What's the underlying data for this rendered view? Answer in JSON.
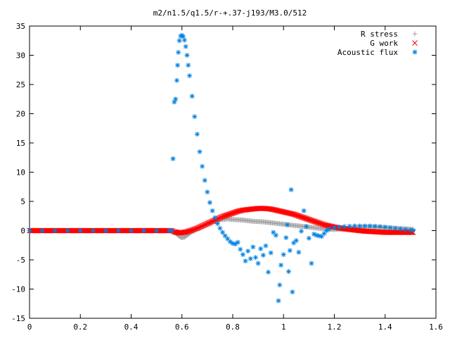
{
  "chart_data": {
    "type": "scatter",
    "title": "m2/n1.5/q1.5/r-+.37-j193/M3.0/512",
    "xlabel": "",
    "ylabel": "",
    "xlim": [
      0,
      1.6
    ],
    "ylim": [
      -15,
      35
    ],
    "x_ticks": [
      "0",
      "0.2",
      "0.4",
      "0.6",
      "0.8",
      "1",
      "1.2",
      "1.4",
      "1.6"
    ],
    "x_tick_values": [
      0,
      0.2,
      0.4,
      0.6,
      0.8,
      1.0,
      1.2,
      1.4,
      1.6
    ],
    "y_ticks": [
      "-15",
      "-10",
      "-5",
      "0",
      "5",
      "10",
      "15",
      "20",
      "25",
      "30",
      "35"
    ],
    "y_tick_values": [
      -15,
      -10,
      -5,
      0,
      5,
      10,
      15,
      20,
      25,
      30,
      35
    ],
    "grid": false,
    "legend_position": "top-right",
    "series": [
      {
        "name": "R stress",
        "marker": "plus",
        "color": "#a0a0a0",
        "points": [
          [
            0.0,
            0
          ],
          [
            0.1,
            0
          ],
          [
            0.2,
            0
          ],
          [
            0.3,
            0
          ],
          [
            0.4,
            0
          ],
          [
            0.5,
            0
          ],
          [
            0.56,
            0
          ],
          [
            0.57,
            -0.2
          ],
          [
            0.58,
            -0.6
          ],
          [
            0.59,
            -1.0
          ],
          [
            0.6,
            -1.2
          ],
          [
            0.61,
            -1.1
          ],
          [
            0.62,
            -0.8
          ],
          [
            0.64,
            -0.2
          ],
          [
            0.66,
            0.3
          ],
          [
            0.68,
            0.7
          ],
          [
            0.7,
            1.1
          ],
          [
            0.72,
            1.5
          ],
          [
            0.74,
            1.8
          ],
          [
            0.76,
            1.9
          ],
          [
            0.78,
            2.0
          ],
          [
            0.8,
            1.9
          ],
          [
            0.84,
            1.8
          ],
          [
            0.88,
            1.6
          ],
          [
            0.92,
            1.5
          ],
          [
            0.96,
            1.3
          ],
          [
            1.0,
            1.1
          ],
          [
            1.04,
            0.9
          ],
          [
            1.08,
            0.7
          ],
          [
            1.12,
            0.5
          ],
          [
            1.16,
            0.3
          ],
          [
            1.2,
            0.2
          ],
          [
            1.24,
            0.3
          ],
          [
            1.28,
            0.5
          ],
          [
            1.32,
            0.6
          ],
          [
            1.36,
            0.6
          ],
          [
            1.4,
            0.5
          ],
          [
            1.44,
            0.4
          ],
          [
            1.48,
            0.3
          ],
          [
            1.51,
            0.2
          ]
        ]
      },
      {
        "name": "G work",
        "marker": "x",
        "color": "#ff0000",
        "points": [
          [
            0.0,
            0
          ],
          [
            0.1,
            0
          ],
          [
            0.2,
            0
          ],
          [
            0.3,
            0
          ],
          [
            0.4,
            0
          ],
          [
            0.5,
            0
          ],
          [
            0.56,
            0
          ],
          [
            0.57,
            -0.2
          ],
          [
            0.58,
            -0.3
          ],
          [
            0.59,
            -0.4
          ],
          [
            0.6,
            -0.35
          ],
          [
            0.62,
            -0.2
          ],
          [
            0.64,
            0.1
          ],
          [
            0.66,
            0.4
          ],
          [
            0.68,
            0.8
          ],
          [
            0.7,
            1.2
          ],
          [
            0.72,
            1.6
          ],
          [
            0.74,
            2.0
          ],
          [
            0.76,
            2.4
          ],
          [
            0.78,
            2.7
          ],
          [
            0.8,
            3.0
          ],
          [
            0.82,
            3.3
          ],
          [
            0.84,
            3.5
          ],
          [
            0.86,
            3.6
          ],
          [
            0.88,
            3.7
          ],
          [
            0.9,
            3.8
          ],
          [
            0.92,
            3.8
          ],
          [
            0.94,
            3.75
          ],
          [
            0.96,
            3.6
          ],
          [
            0.98,
            3.4
          ],
          [
            1.0,
            3.2
          ],
          [
            1.02,
            3.0
          ],
          [
            1.04,
            2.8
          ],
          [
            1.06,
            2.5
          ],
          [
            1.08,
            2.2
          ],
          [
            1.1,
            1.9
          ],
          [
            1.12,
            1.6
          ],
          [
            1.14,
            1.3
          ],
          [
            1.16,
            1.0
          ],
          [
            1.18,
            0.8
          ],
          [
            1.2,
            0.6
          ],
          [
            1.24,
            0.3
          ],
          [
            1.28,
            0.1
          ],
          [
            1.32,
            -0.1
          ],
          [
            1.36,
            -0.2
          ],
          [
            1.4,
            -0.3
          ],
          [
            1.44,
            -0.3
          ],
          [
            1.48,
            -0.3
          ],
          [
            1.51,
            -0.3
          ]
        ]
      },
      {
        "name": "Acoustic flux",
        "marker": "star",
        "color": "#0080e0",
        "points": [
          [
            0.0,
            0
          ],
          [
            0.05,
            0
          ],
          [
            0.1,
            0
          ],
          [
            0.15,
            0
          ],
          [
            0.2,
            0
          ],
          [
            0.25,
            0
          ],
          [
            0.3,
            0
          ],
          [
            0.35,
            0
          ],
          [
            0.4,
            0
          ],
          [
            0.45,
            0
          ],
          [
            0.5,
            0
          ],
          [
            0.55,
            0
          ],
          [
            0.56,
            0
          ],
          [
            0.565,
            12.3
          ],
          [
            0.57,
            22
          ],
          [
            0.575,
            22.5
          ],
          [
            0.58,
            25.7
          ],
          [
            0.583,
            28.3
          ],
          [
            0.586,
            30.5
          ],
          [
            0.59,
            32.5
          ],
          [
            0.595,
            33.3
          ],
          [
            0.6,
            33.4
          ],
          [
            0.605,
            33.2
          ],
          [
            0.61,
            32.6
          ],
          [
            0.615,
            31.5
          ],
          [
            0.62,
            30.0
          ],
          [
            0.625,
            28.3
          ],
          [
            0.63,
            26.5
          ],
          [
            0.64,
            23.0
          ],
          [
            0.65,
            19.5
          ],
          [
            0.66,
            16.5
          ],
          [
            0.67,
            13.5
          ],
          [
            0.68,
            11.0
          ],
          [
            0.69,
            8.6
          ],
          [
            0.7,
            6.6
          ],
          [
            0.71,
            4.8
          ],
          [
            0.72,
            3.4
          ],
          [
            0.73,
            2.2
          ],
          [
            0.74,
            1.2
          ],
          [
            0.75,
            0.4
          ],
          [
            0.76,
            -0.3
          ],
          [
            0.77,
            -0.9
          ],
          [
            0.78,
            -1.4
          ],
          [
            0.79,
            -1.9
          ],
          [
            0.8,
            -2.2
          ],
          [
            0.81,
            -2.3
          ],
          [
            0.82,
            -2.0
          ],
          [
            0.83,
            -3.2
          ],
          [
            0.84,
            -4.1
          ],
          [
            0.85,
            -5.2
          ],
          [
            0.86,
            -3.5
          ],
          [
            0.87,
            -4.8
          ],
          [
            0.88,
            -2.8
          ],
          [
            0.89,
            -4.6
          ],
          [
            0.9,
            -5.6
          ],
          [
            0.91,
            -3.1
          ],
          [
            0.92,
            -4.2
          ],
          [
            0.93,
            -2.6
          ],
          [
            0.94,
            -7.1
          ],
          [
            0.95,
            -3.8
          ],
          [
            0.96,
            -0.3
          ],
          [
            0.97,
            -0.8
          ],
          [
            0.98,
            -12.0
          ],
          [
            0.985,
            -9.3
          ],
          [
            0.99,
            -5.9
          ],
          [
            1.0,
            -4.1
          ],
          [
            1.01,
            -1.2
          ],
          [
            1.015,
            1.0
          ],
          [
            1.02,
            -7.0
          ],
          [
            1.025,
            -3.4
          ],
          [
            1.03,
            7.0
          ],
          [
            1.035,
            -10.5
          ],
          [
            1.04,
            -2.1
          ],
          [
            1.05,
            -1.7
          ],
          [
            1.06,
            -3.7
          ],
          [
            1.07,
            -0.1
          ],
          [
            1.08,
            3.4
          ],
          [
            1.09,
            0.7
          ],
          [
            1.1,
            -1.3
          ],
          [
            1.11,
            -5.6
          ],
          [
            1.12,
            -0.6
          ],
          [
            1.13,
            -0.8
          ],
          [
            1.14,
            -0.9
          ],
          [
            1.15,
            -1.0
          ],
          [
            1.16,
            -0.5
          ],
          [
            1.17,
            0.0
          ],
          [
            1.18,
            0.3
          ],
          [
            1.2,
            0.5
          ],
          [
            1.22,
            0.6
          ],
          [
            1.24,
            0.7
          ],
          [
            1.26,
            0.75
          ],
          [
            1.28,
            0.8
          ],
          [
            1.3,
            0.8
          ],
          [
            1.32,
            0.8
          ],
          [
            1.34,
            0.8
          ],
          [
            1.36,
            0.75
          ],
          [
            1.38,
            0.7
          ],
          [
            1.4,
            0.6
          ],
          [
            1.42,
            0.5
          ],
          [
            1.44,
            0.4
          ],
          [
            1.46,
            0.3
          ],
          [
            1.48,
            0.2
          ],
          [
            1.5,
            0.1
          ],
          [
            1.51,
            0.05
          ]
        ]
      }
    ]
  }
}
